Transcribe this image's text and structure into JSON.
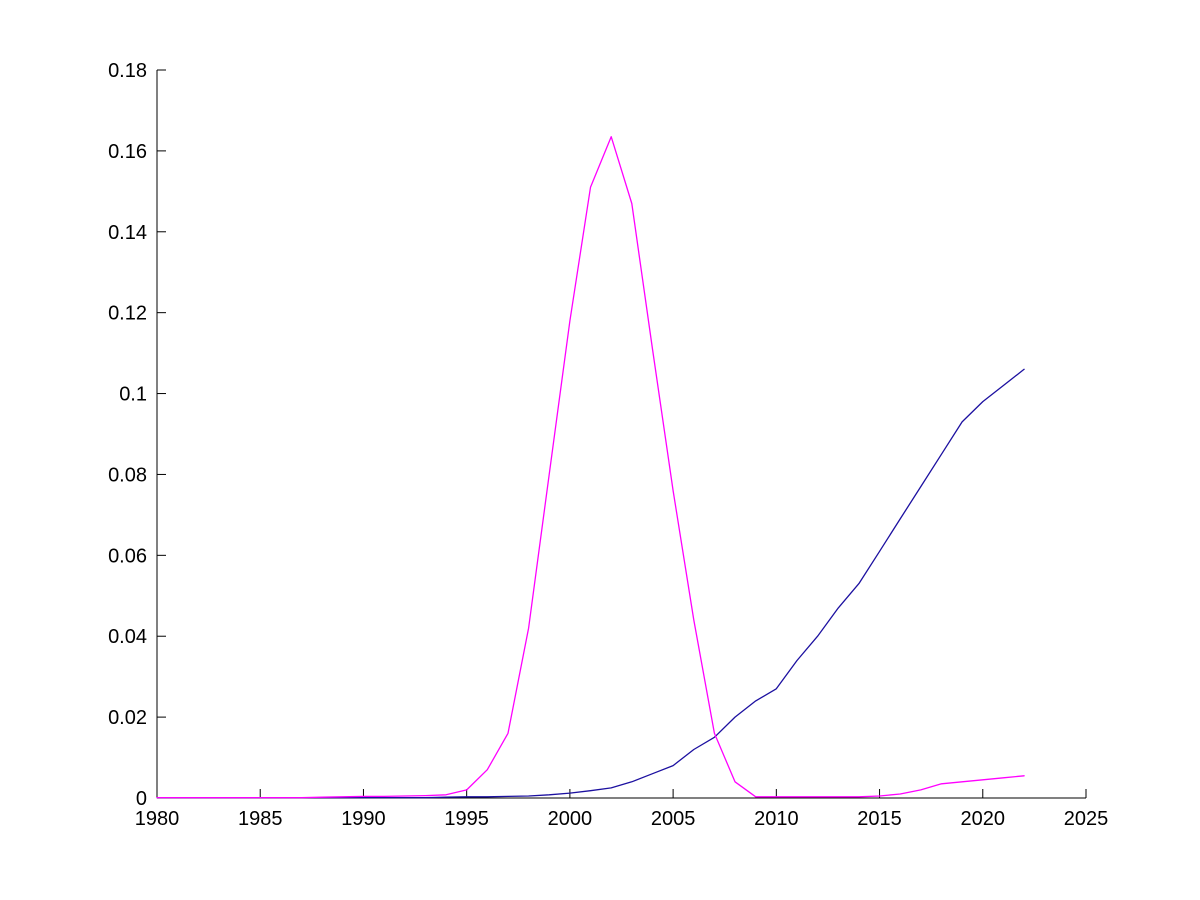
{
  "figure": {
    "background_color": "#ffffff",
    "axis_color": "#000000"
  },
  "chart_data": {
    "type": "line",
    "title": "",
    "xlabel": "",
    "ylabel": "",
    "grid": false,
    "legend": "none",
    "xlim": [
      1980,
      2025
    ],
    "ylim": [
      0,
      0.18
    ],
    "x_ticks": [
      1980,
      1985,
      1990,
      1995,
      2000,
      2005,
      2010,
      2015,
      2020,
      2025
    ],
    "y_ticks": [
      0,
      0.02,
      0.04,
      0.06,
      0.08,
      0.1,
      0.12,
      0.14,
      0.16,
      0.18
    ],
    "x": [
      1980,
      1981,
      1982,
      1983,
      1984,
      1985,
      1986,
      1987,
      1988,
      1989,
      1990,
      1991,
      1992,
      1993,
      1994,
      1995,
      1996,
      1997,
      1998,
      1999,
      2000,
      2001,
      2002,
      2003,
      2004,
      2005,
      2006,
      2007,
      2008,
      2009,
      2010,
      2011,
      2012,
      2013,
      2014,
      2015,
      2016,
      2017,
      2018,
      2019,
      2020,
      2021,
      2022
    ],
    "series": [
      {
        "name": "dark-blue-curve",
        "color": "#1c10a0",
        "values": [
          0.0001,
          0.0001,
          0.0001,
          0.0001,
          0.0001,
          0.0001,
          0.0001,
          0.0001,
          0.0001,
          0.0001,
          0.0001,
          0.0001,
          0.0001,
          0.0001,
          0.0002,
          0.0003,
          0.0003,
          0.0004,
          0.0005,
          0.0008,
          0.0012,
          0.0018,
          0.0025,
          0.004,
          0.006,
          0.008,
          0.012,
          0.015,
          0.02,
          0.024,
          0.027,
          0.034,
          0.04,
          0.047,
          0.053,
          0.061,
          0.069,
          0.077,
          0.085,
          0.093,
          0.098,
          0.102,
          0.106
        ]
      },
      {
        "name": "magenta-curve",
        "color": "#ff00ff",
        "values": [
          0.0001,
          0.0001,
          0.0001,
          0.0001,
          0.0001,
          0.0001,
          0.0001,
          0.0001,
          0.0002,
          0.0003,
          0.0004,
          0.0004,
          0.0005,
          0.0006,
          0.0008,
          0.002,
          0.007,
          0.016,
          0.042,
          0.08,
          0.118,
          0.151,
          0.1635,
          0.147,
          0.111,
          0.076,
          0.044,
          0.016,
          0.004,
          0.0003,
          0.0003,
          0.0003,
          0.0003,
          0.0003,
          0.0003,
          0.0005,
          0.001,
          0.002,
          0.0035,
          0.004,
          0.0045,
          0.005,
          0.0055
        ]
      }
    ]
  }
}
